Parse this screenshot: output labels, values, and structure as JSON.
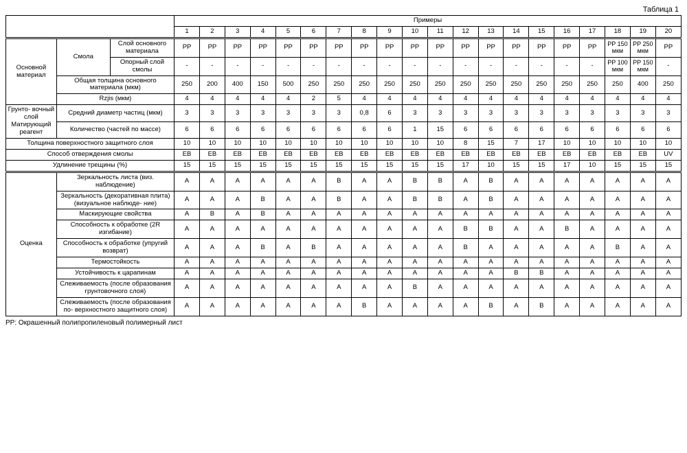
{
  "caption": "Таблица 1",
  "headerTop": "Примеры",
  "cols": [
    "1",
    "2",
    "3",
    "4",
    "5",
    "6",
    "7",
    "8",
    "9",
    "10",
    "11",
    "12",
    "13",
    "14",
    "15",
    "16",
    "17",
    "18",
    "19",
    "20"
  ],
  "groups": {
    "g1": "Основной материал",
    "g1a": "Смола",
    "g1a1": "Слой основного материала",
    "g1a2": "Опорный слой смолы",
    "g1b": "Общая толщина основного материала (мкм)",
    "g1c": "Rzjis (мкм)",
    "g2": "Грунто-\nвочный слой\nМатирующий реагент",
    "g2a": "Средний диаметр частиц (мкм)",
    "g2b": "Количество (частей по массе)",
    "r_thk": "Толщина поверхностного защитного слоя",
    "r_cure": "Способ отверждения смолы",
    "r_elong": "Удлинение трещины (%)",
    "g3": "Оценка",
    "e1": "Зеркальность листа (виз. наблюдение)",
    "e2": "Зеркальность (декоративная плита) (визуальное наблюде-\nние)",
    "e3": "Маскирующие свойства",
    "e4": "Способность к обработке (2R изгибание)",
    "e5": "Способность к обработке (упругий возврат)",
    "e6": "Термостойкость",
    "e7": "Устойчивость к царапинам",
    "e8": "Слеживаемость (после образования грунтовочного слоя)",
    "e9": "Слеживаемость (после образования по-\nверхностного защитного слоя)"
  },
  "rows": {
    "layer_main": [
      "PP",
      "PP",
      "PP",
      "PP",
      "PP",
      "PP",
      "PP",
      "PP",
      "PP",
      "PP",
      "PP",
      "PP",
      "PP",
      "PP",
      "PP",
      "PP",
      "PP",
      "PP 150 мкм",
      "PP 250 мкм",
      "PP"
    ],
    "layer_sup": [
      "-",
      "-",
      "-",
      "-",
      "-",
      "-",
      "-",
      "-",
      "-",
      "-",
      "-",
      "-",
      "-",
      "-",
      "-",
      "-",
      "-",
      "PP 100 мкм",
      "PP 150 мкм",
      "-"
    ],
    "thickness": [
      "250",
      "200",
      "400",
      "150",
      "500",
      "250",
      "250",
      "250",
      "250",
      "250",
      "250",
      "250",
      "250",
      "250",
      "250",
      "250",
      "250",
      "250",
      "400",
      "250"
    ],
    "rzjis": [
      "4",
      "4",
      "4",
      "4",
      "4",
      "2",
      "5",
      "4",
      "4",
      "4",
      "4",
      "4",
      "4",
      "4",
      "4",
      "4",
      "4",
      "4",
      "4",
      "4"
    ],
    "diam": [
      "3",
      "3",
      "3",
      "3",
      "3",
      "3",
      "3",
      "0,8",
      "6",
      "3",
      "3",
      "3",
      "3",
      "3",
      "3",
      "3",
      "3",
      "3",
      "3",
      "3"
    ],
    "qty": [
      "6",
      "6",
      "6",
      "6",
      "6",
      "6",
      "6",
      "6",
      "6",
      "1",
      "15",
      "6",
      "6",
      "6",
      "6",
      "6",
      "6",
      "6",
      "6",
      "6"
    ],
    "surf_thk": [
      "10",
      "10",
      "10",
      "10",
      "10",
      "10",
      "10",
      "10",
      "10",
      "10",
      "10",
      "8",
      "15",
      "7",
      "17",
      "10",
      "10",
      "10",
      "10",
      "10"
    ],
    "cure": [
      "EB",
      "EB",
      "EB",
      "EB",
      "EB",
      "EB",
      "EB",
      "EB",
      "EB",
      "EB",
      "EB",
      "EB",
      "EB",
      "EB",
      "EB",
      "EB",
      "EB",
      "EB",
      "EB",
      "UV"
    ],
    "elong": [
      "15",
      "15",
      "15",
      "15",
      "15",
      "15",
      "15",
      "15",
      "15",
      "15",
      "15",
      "17",
      "10",
      "15",
      "15",
      "17",
      "10",
      "15",
      "15",
      "15"
    ],
    "e1": [
      "A",
      "A",
      "A",
      "A",
      "A",
      "A",
      "B",
      "A",
      "A",
      "B",
      "B",
      "A",
      "B",
      "A",
      "A",
      "A",
      "A",
      "A",
      "A",
      "A"
    ],
    "e2": [
      "A",
      "A",
      "A",
      "B",
      "A",
      "A",
      "B",
      "A",
      "A",
      "B",
      "B",
      "A",
      "B",
      "A",
      "A",
      "A",
      "A",
      "A",
      "A",
      "A"
    ],
    "e3": [
      "A",
      "B",
      "A",
      "B",
      "A",
      "A",
      "A",
      "A",
      "A",
      "A",
      "A",
      "A",
      "A",
      "A",
      "A",
      "A",
      "A",
      "A",
      "A",
      "A"
    ],
    "e4": [
      "A",
      "A",
      "A",
      "A",
      "A",
      "A",
      "A",
      "A",
      "A",
      "A",
      "A",
      "B",
      "B",
      "A",
      "A",
      "B",
      "A",
      "A",
      "A",
      "A"
    ],
    "e5": [
      "A",
      "A",
      "A",
      "B",
      "A",
      "B",
      "A",
      "A",
      "A",
      "A",
      "A",
      "B",
      "A",
      "A",
      "A",
      "A",
      "A",
      "B",
      "A",
      "A"
    ],
    "e6": [
      "A",
      "A",
      "A",
      "A",
      "A",
      "A",
      "A",
      "A",
      "A",
      "A",
      "A",
      "A",
      "A",
      "A",
      "A",
      "A",
      "A",
      "A",
      "A",
      "A"
    ],
    "e7": [
      "A",
      "A",
      "A",
      "A",
      "A",
      "A",
      "A",
      "A",
      "A",
      "A",
      "A",
      "A",
      "A",
      "B",
      "B",
      "A",
      "A",
      "A",
      "A",
      "A"
    ],
    "e8": [
      "A",
      "A",
      "A",
      "A",
      "A",
      "A",
      "A",
      "A",
      "A",
      "B",
      "A",
      "A",
      "A",
      "A",
      "A",
      "A",
      "A",
      "A",
      "A",
      "A"
    ],
    "e9": [
      "A",
      "A",
      "A",
      "A",
      "A",
      "A",
      "A",
      "B",
      "A",
      "A",
      "A",
      "A",
      "B",
      "A",
      "B",
      "A",
      "A",
      "A",
      "A",
      "A"
    ]
  },
  "footnote": "PP: Окрашенный полипропиленовый полимерный лист"
}
